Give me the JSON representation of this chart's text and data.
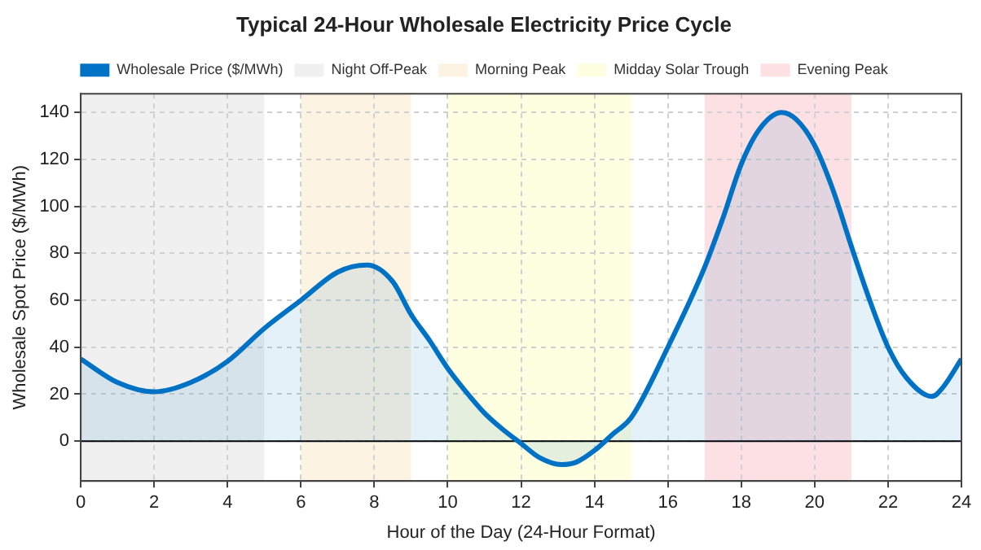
{
  "chart_data": {
    "type": "area",
    "title": "Typical 24-Hour Wholesale Electricity Price Cycle",
    "xlabel": "Hour of the Day (24-Hour Format)",
    "ylabel": "Wholesale Spot Price ($/MWh)",
    "series": [
      {
        "name": "Wholesale Price ($/MWh)",
        "color": "#0072c6",
        "x": [
          0,
          1,
          2,
          3,
          4,
          5,
          6,
          7,
          7.8,
          8.5,
          9,
          9.5,
          10,
          10.5,
          11,
          11.5,
          12,
          12.5,
          13.1,
          13.5,
          14,
          14.5,
          15,
          16,
          17,
          17.5,
          18,
          18.5,
          19.1,
          19.5,
          20,
          20.5,
          21,
          21.5,
          22,
          22.5,
          23.2,
          23.5,
          24
        ],
        "values": [
          35,
          25,
          21,
          25,
          34,
          48,
          60,
          72,
          75,
          68,
          54,
          43,
          31,
          21,
          12,
          5,
          -1,
          -7,
          -10,
          -9,
          -4,
          3,
          10,
          40,
          74,
          95,
          118,
          133,
          140,
          137,
          126,
          107,
          83,
          60,
          40,
          27,
          19,
          23,
          35
        ]
      }
    ],
    "xlim": [
      0,
      24
    ],
    "xticks": [
      0,
      2,
      4,
      6,
      8,
      10,
      12,
      14,
      16,
      18,
      20,
      22,
      24
    ],
    "ylim": [
      -17,
      148
    ],
    "yticks": [
      0,
      20,
      40,
      60,
      80,
      100,
      120,
      140
    ],
    "grid": true,
    "legend": "top",
    "ref_lines": [
      {
        "axis": "y",
        "value": 0,
        "color": "#000000"
      }
    ],
    "bands": [
      {
        "axis": "x",
        "from": 0,
        "to": 5,
        "label": "Night Off-Peak",
        "color": "#f0f0f0"
      },
      {
        "axis": "x",
        "from": 6,
        "to": 9,
        "label": "Morning Peak",
        "color": "#fdf3e3"
      },
      {
        "axis": "x",
        "from": 10,
        "to": 15,
        "label": "Midday Solar Trough",
        "color": "#fefee0"
      },
      {
        "axis": "x",
        "from": 17,
        "to": 21,
        "label": "Evening Peak",
        "color": "#fde0e3"
      }
    ]
  }
}
